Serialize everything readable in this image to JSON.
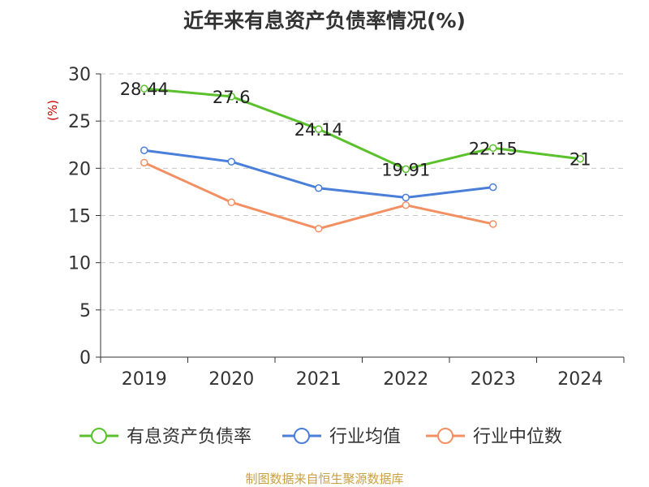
{
  "chart_data": {
    "type": "line",
    "title": "近年来有息资产负债率情况(%)",
    "ylabel": "(%)",
    "categories": [
      "2019",
      "2020",
      "2021",
      "2022",
      "2023",
      "2024"
    ],
    "ylim": [
      0,
      30
    ],
    "yticks": [
      0,
      5,
      10,
      15,
      20,
      25,
      30
    ],
    "grid": true,
    "legend": "bottom",
    "series": [
      {
        "name": "有息资产负债率",
        "color": "#5ac12c",
        "values": [
          28.44,
          27.6,
          24.14,
          19.91,
          22.15,
          21
        ],
        "labels": [
          "28.44",
          "27.6",
          "24.14",
          "19.91",
          "22.15",
          "21"
        ]
      },
      {
        "name": "行业均值",
        "color": "#4a7fd9",
        "values": [
          21.9,
          20.7,
          17.9,
          16.9,
          18.0,
          null
        ]
      },
      {
        "name": "行业中位数",
        "color": "#f29063",
        "values": [
          20.6,
          16.4,
          13.6,
          16.1,
          14.1,
          null
        ]
      }
    ]
  },
  "footer": "制图数据来自恒生聚源数据库"
}
